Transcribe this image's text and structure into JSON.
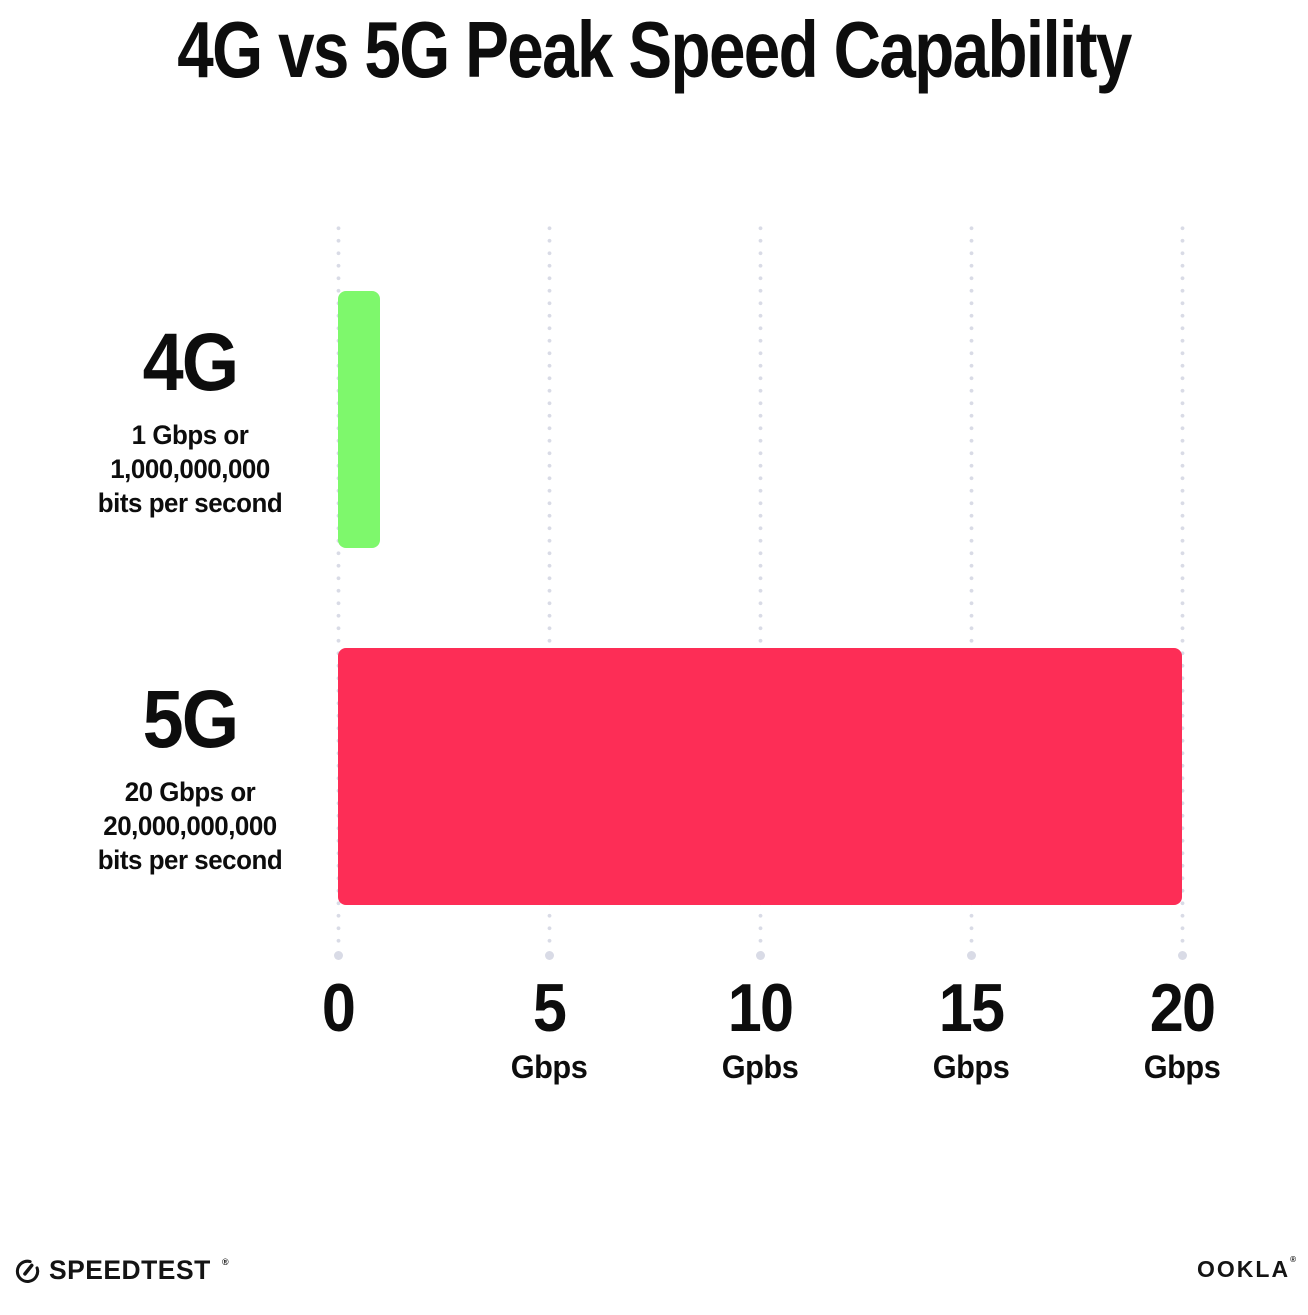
{
  "chart": {
    "title": "4G vs 5G Peak Speed Capability"
  },
  "chart_data": {
    "type": "bar",
    "orientation": "horizontal",
    "title": "4G vs 5G Peak Speed Capability",
    "categories": [
      "4G",
      "5G"
    ],
    "category_sublabels": [
      [
        "1 Gbps or",
        "1,000,000,000",
        "bits per second"
      ],
      [
        "20 Gbps or",
        "20,000,000,000",
        "bits per second"
      ]
    ],
    "values": [
      1,
      20
    ],
    "bar_colors": [
      "#7ef86c",
      "#fd2d56"
    ],
    "xlabel": "",
    "ylabel": "",
    "xlim": [
      0,
      20
    ],
    "xticks": [
      {
        "value": 0,
        "label": "0",
        "unit": ""
      },
      {
        "value": 5,
        "label": "5",
        "unit": "Gbps"
      },
      {
        "value": 10,
        "label": "10",
        "unit": "Gpbs"
      },
      {
        "value": 15,
        "label": "15",
        "unit": "Gbps"
      },
      {
        "value": 20,
        "label": "20",
        "unit": "Gbps"
      }
    ],
    "grid": "dotted-vertical",
    "legend": "none"
  },
  "footer": {
    "speedtest_label": "SPEEDTEST",
    "speedtest_mark": "®",
    "ookla_label": "OOKLA",
    "ookla_mark": "®"
  },
  "colors": {
    "bar_green": "#7ef86c",
    "bar_red": "#fd2d56",
    "grid_dot": "#d9dbe6",
    "text": "#0d0d0d",
    "background": "#ffffff"
  }
}
